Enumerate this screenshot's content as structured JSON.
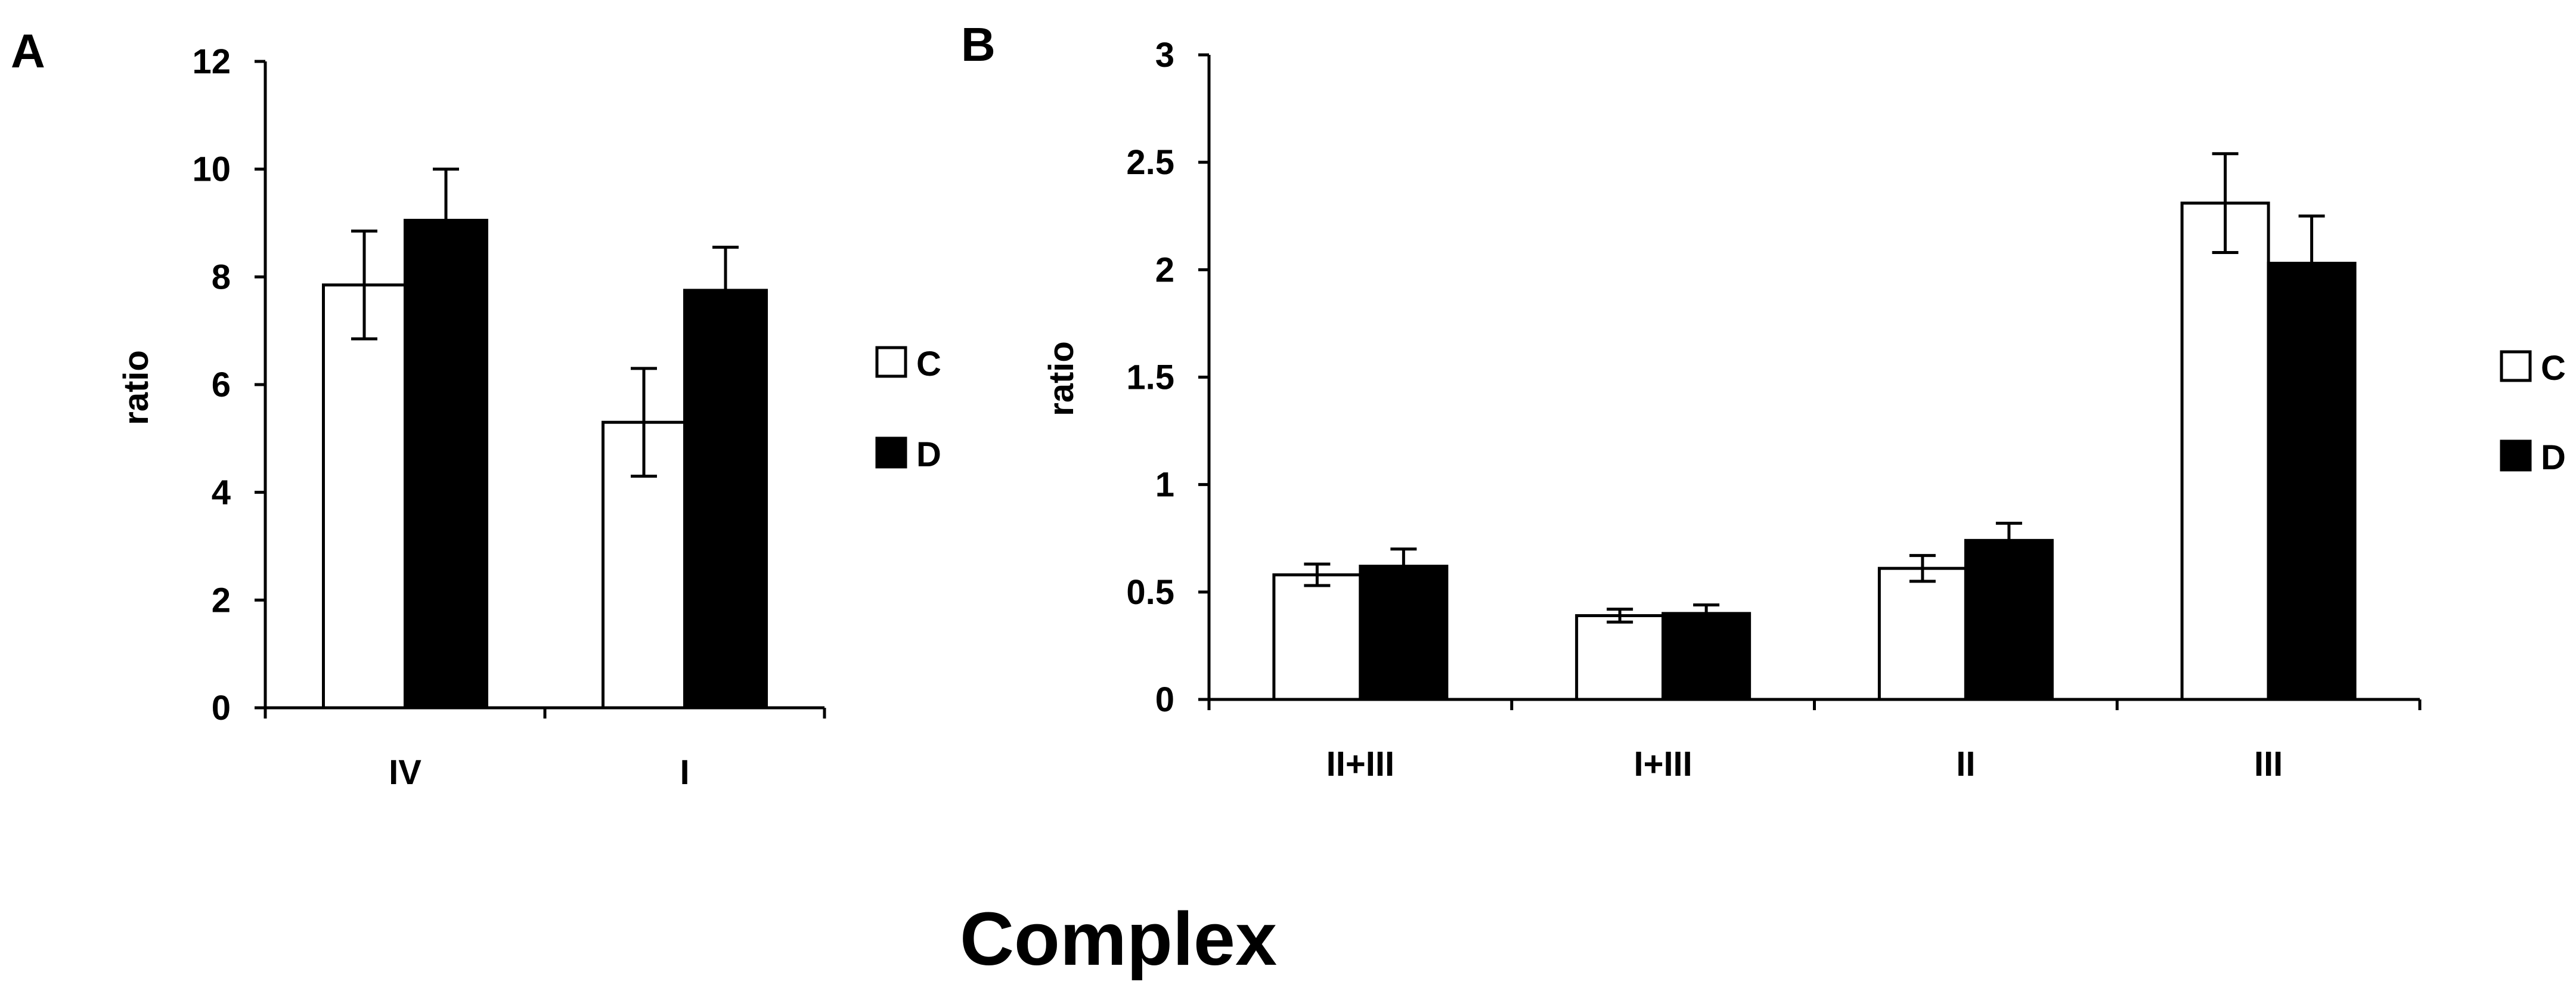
{
  "colors": {
    "C": "#ffffff",
    "D": "#000000",
    "axis": "#000000"
  },
  "figure": {
    "xlabel": "Complex"
  },
  "chart_data": [
    {
      "panel": "A",
      "type": "bar",
      "ylabel": "ratio",
      "ylim": [
        0,
        12
      ],
      "yticks": [
        "0",
        "2",
        "4",
        "6",
        "8",
        "10",
        "12"
      ],
      "categories": [
        "IV",
        "I"
      ],
      "series": [
        {
          "name": "C",
          "values": [
            7.85,
            5.3
          ],
          "errors": [
            1.0,
            1.0
          ]
        },
        {
          "name": "D",
          "values": [
            9.05,
            7.75
          ],
          "errors": [
            0.95,
            0.8
          ]
        }
      ],
      "legend": "right"
    },
    {
      "panel": "B",
      "type": "bar",
      "ylabel": "ratio",
      "ylim": [
        0,
        3
      ],
      "yticks": [
        "0",
        "0.5",
        "1",
        "1.5",
        "2",
        "2.5",
        "3"
      ],
      "categories": [
        "II+III",
        "I+III",
        "II",
        "III"
      ],
      "series": [
        {
          "name": "C",
          "values": [
            0.58,
            0.39,
            0.61,
            2.31
          ],
          "errors": [
            0.05,
            0.03,
            0.06,
            0.23
          ]
        },
        {
          "name": "D",
          "values": [
            0.62,
            0.4,
            0.74,
            2.03
          ],
          "errors": [
            0.08,
            0.04,
            0.08,
            0.22
          ]
        }
      ],
      "legend": "right"
    }
  ]
}
